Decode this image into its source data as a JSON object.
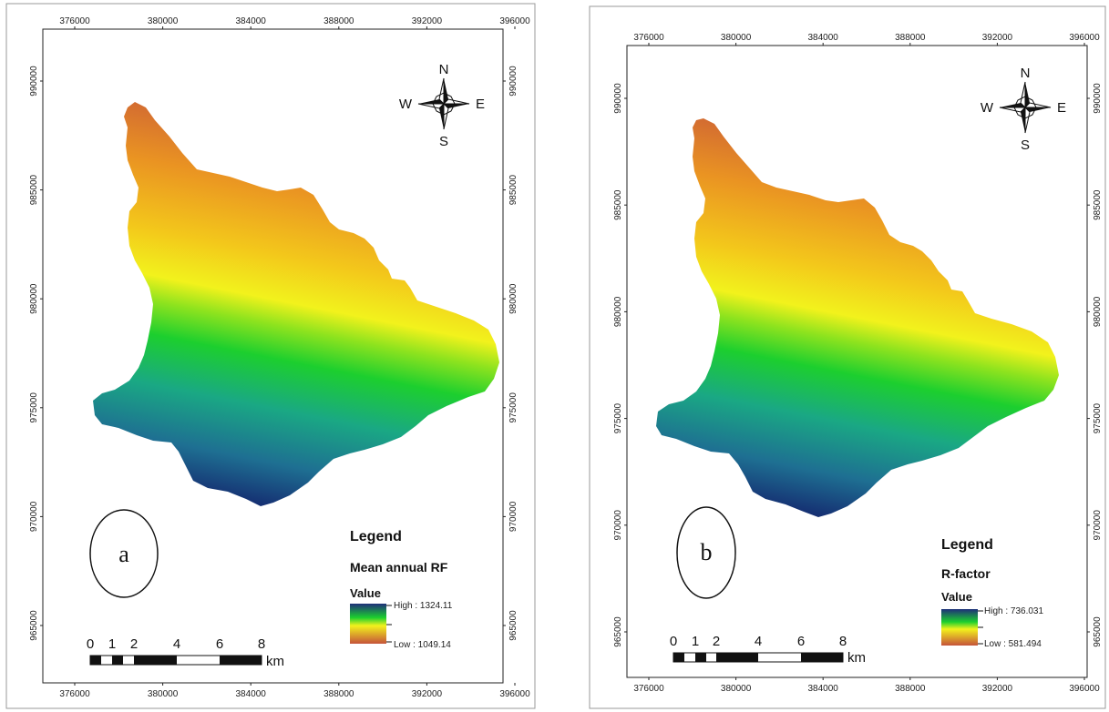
{
  "maps": [
    {
      "panel_label": "a",
      "legend": {
        "title": "Legend",
        "layer": "Mean annual RF",
        "value_header": "Value",
        "high": "High : 1324.11",
        "low": "Low : 1049.14"
      }
    },
    {
      "panel_label": "b",
      "legend": {
        "title": "Legend",
        "layer": "R-factor",
        "value_header": "Value",
        "high": "High : 736.031",
        "low": "Low : 581.494"
      }
    }
  ],
  "x_ticks": [
    "376000",
    "380000",
    "384000",
    "388000",
    "392000",
    "396000"
  ],
  "y_ticks": [
    "990000",
    "985000",
    "980000",
    "975000",
    "970000",
    "965000"
  ],
  "compass": {
    "n": "N",
    "s": "S",
    "e": "E",
    "w": "W"
  },
  "scale_bar": {
    "labels": [
      "0",
      "1",
      "2",
      "4",
      "6",
      "8"
    ],
    "unit": "km"
  },
  "color_ramp": {
    "high": "#1e2f7a",
    "mid_high": "#1aa884",
    "green": "#1ccf2e",
    "yellow": "#f2f21c",
    "orange": "#f0a21a",
    "low": "#c5533a"
  }
}
